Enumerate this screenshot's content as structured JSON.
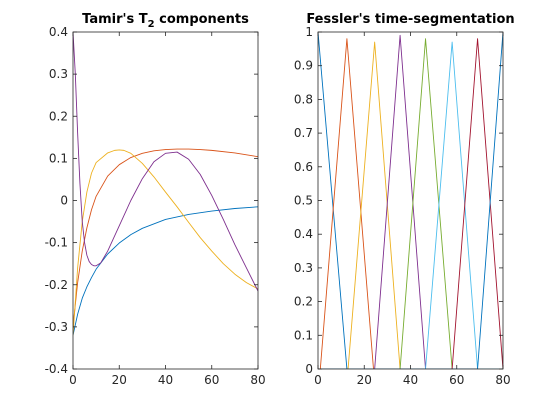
{
  "chart_data": [
    {
      "type": "line",
      "title": "Tamir's T",
      "title_subscript": "2",
      "title_suffix": " components",
      "xlabel": "",
      "ylabel": "",
      "xlim": [
        0,
        80
      ],
      "ylim": [
        -0.4,
        0.4
      ],
      "xticks": [
        0,
        20,
        40,
        60,
        80
      ],
      "yticks": [
        -0.4,
        -0.3,
        -0.2,
        -0.1,
        0,
        0.1,
        0.2,
        0.3,
        0.4
      ],
      "ytick_labels": [
        "-0.4",
        "-0.3",
        "-0.2",
        "-0.1",
        "0",
        "0.1",
        "0.2",
        "0.3",
        "0.4"
      ],
      "grid": false,
      "series": [
        {
          "color": "#0072BD",
          "x": [
            0,
            2,
            4,
            6,
            8,
            10,
            15,
            20,
            25,
            30,
            40,
            50,
            60,
            70,
            80
          ],
          "y": [
            -0.32,
            -0.27,
            -0.232,
            -0.205,
            -0.183,
            -0.163,
            -0.127,
            -0.101,
            -0.081,
            -0.066,
            -0.045,
            -0.033,
            -0.025,
            -0.019,
            -0.015
          ]
        },
        {
          "color": "#D95319",
          "x": [
            0,
            2,
            4,
            6,
            8,
            10,
            15,
            20,
            25,
            30,
            35,
            40,
            45,
            50,
            55,
            60,
            70,
            80
          ],
          "y": [
            -0.3,
            -0.195,
            -0.12,
            -0.065,
            -0.022,
            0.01,
            0.058,
            0.085,
            0.102,
            0.112,
            0.118,
            0.121,
            0.122,
            0.122,
            0.121,
            0.119,
            0.113,
            0.104
          ]
        },
        {
          "color": "#EDB120",
          "x": [
            0,
            2,
            4,
            6,
            8,
            10,
            15,
            18,
            20,
            22,
            25,
            30,
            35,
            40,
            45,
            50,
            55,
            60,
            65,
            70,
            75,
            80
          ],
          "y": [
            -0.32,
            -0.16,
            -0.05,
            0.02,
            0.065,
            0.09,
            0.113,
            0.119,
            0.12,
            0.119,
            0.112,
            0.088,
            0.056,
            0.02,
            -0.015,
            -0.052,
            -0.088,
            -0.12,
            -0.15,
            -0.175,
            -0.195,
            -0.21
          ]
        },
        {
          "color": "#7E2F8E",
          "x": [
            0,
            1,
            2,
            3,
            4,
            5,
            6,
            7,
            8,
            9,
            10,
            12,
            15,
            20,
            25,
            30,
            35,
            40,
            45,
            50,
            55,
            60,
            65,
            70,
            75,
            80
          ],
          "y": [
            0.4,
            0.3,
            0.16,
            0.04,
            -0.05,
            -0.1,
            -0.13,
            -0.145,
            -0.152,
            -0.155,
            -0.155,
            -0.148,
            -0.12,
            -0.06,
            0.0,
            0.052,
            0.092,
            0.112,
            0.115,
            0.098,
            0.062,
            0.012,
            -0.045,
            -0.105,
            -0.16,
            -0.215
          ]
        }
      ]
    },
    {
      "type": "line",
      "title": "Fessler's time-segmentation",
      "xlabel": "",
      "ylabel": "",
      "xlim": [
        0,
        80
      ],
      "ylim": [
        0,
        1
      ],
      "xticks": [
        0,
        20,
        40,
        60,
        80
      ],
      "yticks": [
        0,
        0.1,
        0.2,
        0.3,
        0.4,
        0.5,
        0.6,
        0.7,
        0.8,
        0.9,
        1
      ],
      "ytick_labels": [
        "0",
        "0.1",
        "0.2",
        "0.3",
        "0.4",
        "0.5",
        "0.6",
        "0.7",
        "0.8",
        "0.9",
        "1"
      ],
      "grid": false,
      "series": [
        {
          "color": "#0072BD",
          "x": [
            0,
            12.5,
            80
          ],
          "y": [
            1,
            0,
            0
          ]
        },
        {
          "color": "#D95319",
          "x": [
            0,
            1,
            12.5,
            24,
            80
          ],
          "y": [
            0,
            0,
            0.98,
            0,
            0
          ]
        },
        {
          "color": "#EDB120",
          "x": [
            0,
            13,
            24.5,
            35.5,
            80
          ],
          "y": [
            0,
            0,
            0.97,
            0,
            0
          ]
        },
        {
          "color": "#7E2F8E",
          "x": [
            0,
            24.5,
            35.5,
            46.5,
            80
          ],
          "y": [
            0,
            0,
            0.99,
            0,
            0
          ]
        },
        {
          "color": "#77AC30",
          "x": [
            0,
            35.5,
            46.5,
            58,
            80
          ],
          "y": [
            0,
            0,
            0.98,
            0,
            0
          ]
        },
        {
          "color": "#4DBEEE",
          "x": [
            0,
            46.5,
            58,
            69,
            80
          ],
          "y": [
            0,
            0,
            0.97,
            0,
            0
          ]
        },
        {
          "color": "#A2142F",
          "x": [
            0,
            58,
            69,
            80
          ],
          "y": [
            0,
            0,
            0.98,
            0
          ]
        },
        {
          "color": "#0072BD",
          "x": [
            0,
            69,
            80
          ],
          "y": [
            0,
            0,
            1
          ]
        }
      ]
    }
  ]
}
